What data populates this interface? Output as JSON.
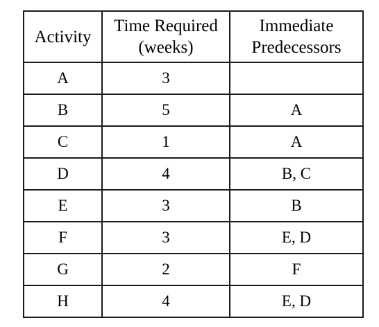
{
  "table": {
    "headers": {
      "activity": "Activity",
      "time_line1": "Time Required",
      "time_line2": "(weeks)",
      "pred_line1": "Immediate",
      "pred_line2": "Predecessors"
    },
    "rows": [
      {
        "activity": "A",
        "time": "3",
        "predecessors": ""
      },
      {
        "activity": "B",
        "time": "5",
        "predecessors": "A"
      },
      {
        "activity": "C",
        "time": "1",
        "predecessors": "A"
      },
      {
        "activity": "D",
        "time": "4",
        "predecessors": "B, C"
      },
      {
        "activity": "E",
        "time": "3",
        "predecessors": "B"
      },
      {
        "activity": "F",
        "time": "3",
        "predecessors": "E, D"
      },
      {
        "activity": "G",
        "time": "2",
        "predecessors": "F"
      },
      {
        "activity": "H",
        "time": "4",
        "predecessors": "E, D"
      }
    ]
  }
}
